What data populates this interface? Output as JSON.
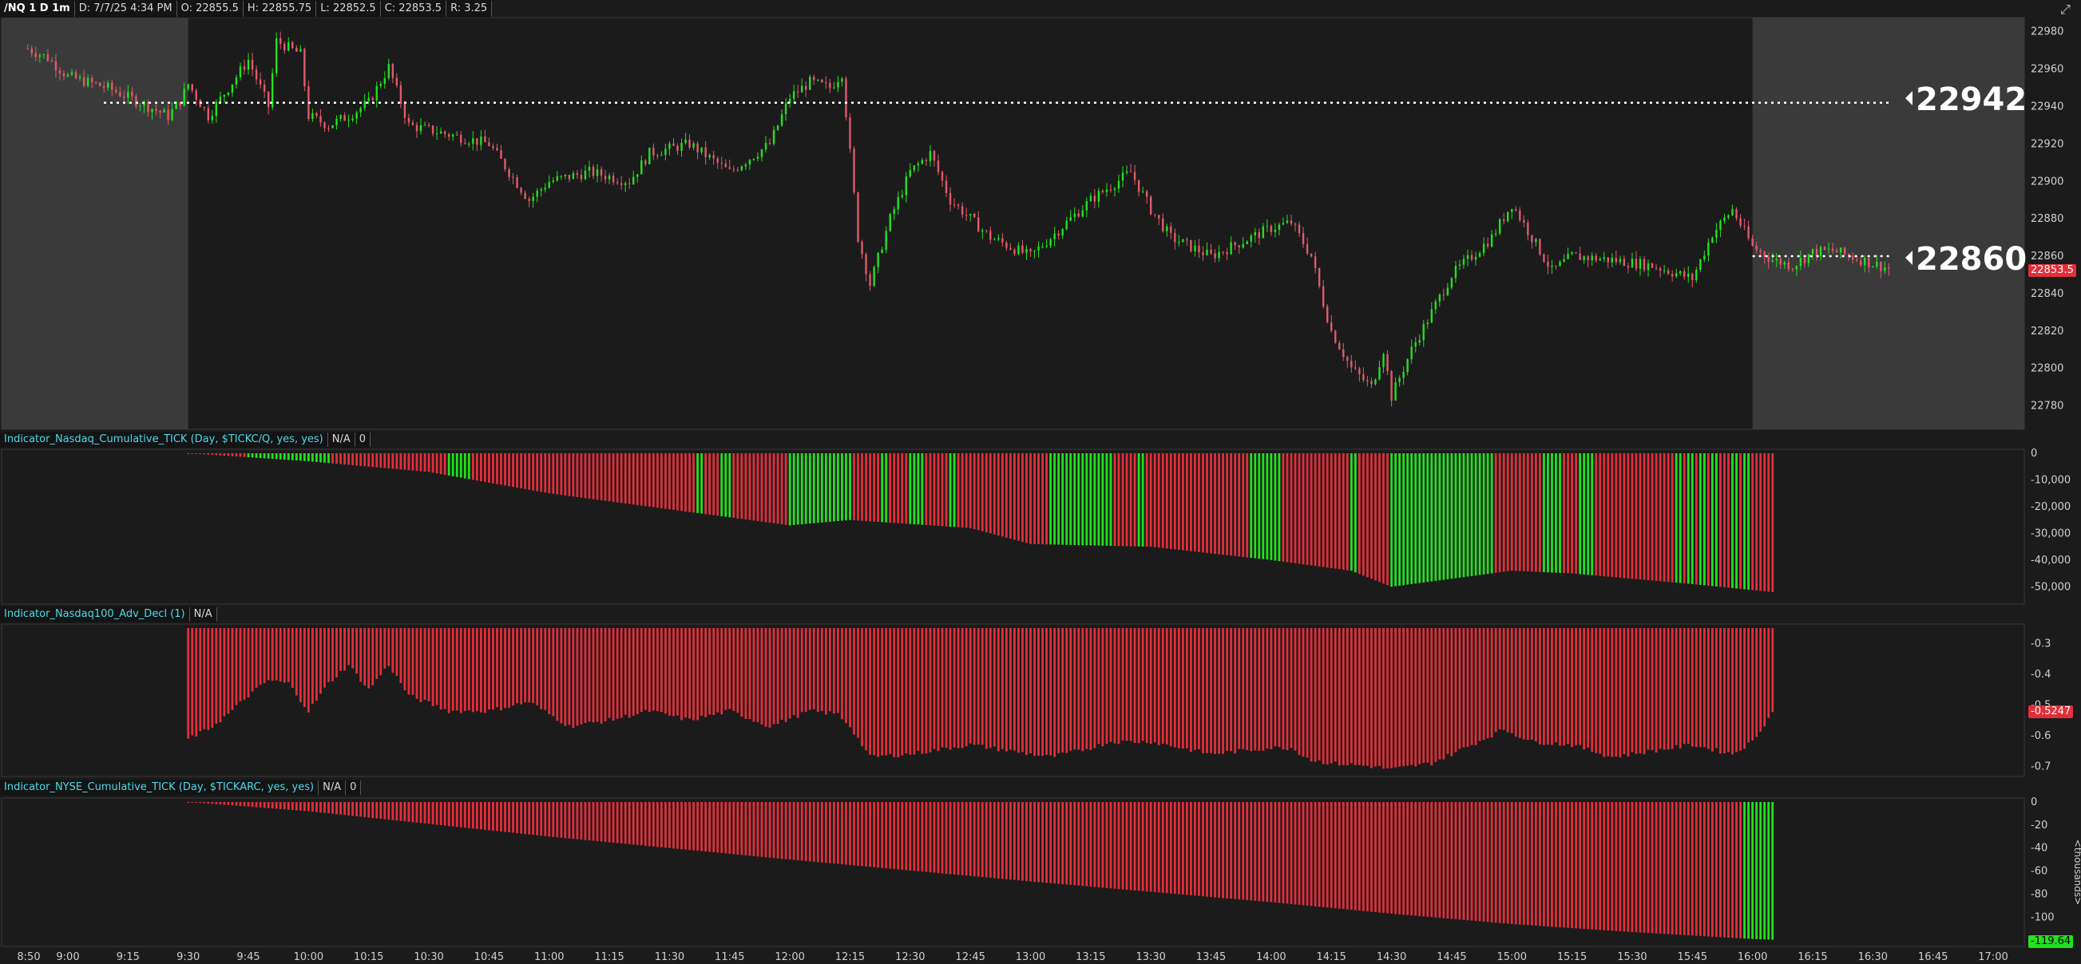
{
  "header": {
    "symbol": "/NQ 1 D 1m",
    "date": "D: 7/7/25 4:34 PM",
    "open": "O: 22855.5",
    "high": "H: 22855.75",
    "low": "L: 22852.5",
    "close": "C: 22853.5",
    "range": "R: 3.25"
  },
  "colors": {
    "up": "#22e11e",
    "down": "#e12f3a",
    "candle_down": "#e05a6a",
    "bg": "#1b1b1b",
    "session_bg": "#3a3a3a",
    "grid": "#2a2a2a",
    "axis_text": "#d0d0d0",
    "accent": "#4fd8e8"
  },
  "price_panel": {
    "y_ticks": [
      "22980",
      "22960",
      "22940",
      "22920",
      "22900",
      "22880",
      "22860",
      "22840",
      "22820",
      "22800",
      "22780"
    ],
    "ylim": [
      22770,
      22985
    ],
    "levels": [
      {
        "price": 22942,
        "label": "22942"
      },
      {
        "price": 22860,
        "label": "22860"
      }
    ],
    "last_price_tag": "22853.5"
  },
  "x_ticks": [
    "8:50",
    "9:00",
    "9:15",
    "9:30",
    "9:45",
    "10:00",
    "10:15",
    "10:30",
    "10:45",
    "11:00",
    "11:15",
    "11:30",
    "11:45",
    "12:00",
    "12:15",
    "12:30",
    "12:45",
    "13:00",
    "13:15",
    "13:30",
    "13:45",
    "14:00",
    "14:15",
    "14:30",
    "14:45",
    "15:00",
    "15:15",
    "15:30",
    "15:45",
    "16:00",
    "16:15",
    "16:30",
    "16:45",
    "17:00"
  ],
  "ind1": {
    "name": "Indicator_Nasdaq_Cumulative_TICK (Day, $TICKC/Q, yes, yes)",
    "na": "N/A",
    "val": "0",
    "ticks": [
      "0",
      "-10,000",
      "-20,000",
      "-30,000",
      "-40,000",
      "-50,000"
    ]
  },
  "ind2": {
    "name": "Indicator_Nasdaq100_Adv_Decl (1)",
    "na": "N/A",
    "ticks": [
      "-0.3",
      "-0.4",
      "-0.5",
      "-0.6",
      "-0.7"
    ],
    "tag": "-0.5247"
  },
  "ind3": {
    "name": "Indicator_NYSE_Cumulative_TICK (Day, $TICKARC, yes, yes)",
    "na": "N/A",
    "val": "0",
    "ticks": [
      "0",
      "-20",
      "-40",
      "-60",
      "-80",
      "-100"
    ],
    "tag": "-119.64",
    "unit_label": "<thousands>"
  },
  "chart_data": [
    {
      "type": "candlestick",
      "title": "/NQ 1 D 1m",
      "ylim": [
        22770,
        22985
      ],
      "anchors": [
        [
          "8:50",
          22971
        ],
        [
          "8:55",
          22966
        ],
        [
          "9:00",
          22956
        ],
        [
          "9:10",
          22950
        ],
        [
          "9:20",
          22940
        ],
        [
          "9:25",
          22935
        ],
        [
          "9:28",
          22943
        ],
        [
          "9:30",
          22952
        ],
        [
          "9:35",
          22935
        ],
        [
          "9:40",
          22950
        ],
        [
          "9:45",
          22965
        ],
        [
          "9:50",
          22940
        ],
        [
          "9:52",
          22975
        ],
        [
          "9:58",
          22968
        ],
        [
          "10:00",
          22935
        ],
        [
          "10:05",
          22930
        ],
        [
          "10:10",
          22935
        ],
        [
          "10:15",
          22942
        ],
        [
          "10:20",
          22961
        ],
        [
          "10:25",
          22930
        ],
        [
          "10:35",
          22925
        ],
        [
          "10:45",
          22920
        ],
        [
          "10:50",
          22905
        ],
        [
          "10:55",
          22890
        ],
        [
          "11:00",
          22900
        ],
        [
          "11:10",
          22905
        ],
        [
          "11:20",
          22900
        ],
        [
          "11:25",
          22915
        ],
        [
          "11:35",
          22920
        ],
        [
          "11:45",
          22905
        ],
        [
          "11:55",
          22920
        ],
        [
          "12:00",
          22945
        ],
        [
          "12:05",
          22953
        ],
        [
          "12:10",
          22950
        ],
        [
          "12:13",
          22958
        ],
        [
          "12:15",
          22915
        ],
        [
          "12:17",
          22870
        ],
        [
          "12:20",
          22845
        ],
        [
          "12:25",
          22880
        ],
        [
          "12:30",
          22905
        ],
        [
          "12:35",
          22915
        ],
        [
          "12:40",
          22890
        ],
        [
          "12:50",
          22870
        ],
        [
          "13:00",
          22860
        ],
        [
          "13:05",
          22870
        ],
        [
          "13:15",
          22890
        ],
        [
          "13:25",
          22905
        ],
        [
          "13:30",
          22885
        ],
        [
          "13:35",
          22870
        ],
        [
          "13:45",
          22860
        ],
        [
          "13:55",
          22870
        ],
        [
          "14:00",
          22875
        ],
        [
          "14:05",
          22878
        ],
        [
          "14:10",
          22860
        ],
        [
          "14:13",
          22835
        ],
        [
          "14:15",
          22820
        ],
        [
          "14:20",
          22800
        ],
        [
          "14:25",
          22790
        ],
        [
          "14:28",
          22810
        ],
        [
          "14:30",
          22785
        ],
        [
          "14:35",
          22810
        ],
        [
          "14:40",
          22830
        ],
        [
          "14:45",
          22850
        ],
        [
          "14:55",
          22870
        ],
        [
          "15:00",
          22888
        ],
        [
          "15:05",
          22870
        ],
        [
          "15:10",
          22852
        ],
        [
          "15:15",
          22860
        ],
        [
          "15:25",
          22858
        ],
        [
          "15:35",
          22855
        ],
        [
          "15:45",
          22848
        ],
        [
          "15:50",
          22872
        ],
        [
          "15:55",
          22885
        ],
        [
          "16:00",
          22865
        ],
        [
          "16:05",
          22858
        ],
        [
          "16:10",
          22855
        ],
        [
          "16:15",
          22862
        ],
        [
          "16:20",
          22863
        ],
        [
          "16:30",
          22856
        ],
        [
          "16:34",
          22853.5
        ]
      ],
      "levels": [
        22942,
        22860
      ]
    },
    {
      "type": "bar",
      "title": "Indicator_Nasdaq_Cumulative_TICK (Day, $TICKC/Q, yes, yes)",
      "ylim": [
        -55000,
        0
      ],
      "anchors": [
        [
          "9:30",
          0
        ],
        [
          "10:00",
          -3000
        ],
        [
          "10:30",
          -7000
        ],
        [
          "11:00",
          -15000
        ],
        [
          "11:30",
          -21000
        ],
        [
          "12:00",
          -27000
        ],
        [
          "12:15",
          -25000
        ],
        [
          "12:45",
          -28000
        ],
        [
          "13:00",
          -34000
        ],
        [
          "13:30",
          -35000
        ],
        [
          "14:00",
          -40000
        ],
        [
          "14:20",
          -44000
        ],
        [
          "14:30",
          -50000
        ],
        [
          "14:45",
          -47000
        ],
        [
          "15:00",
          -44000
        ],
        [
          "15:15",
          -45000
        ],
        [
          "15:45",
          -49000
        ],
        [
          "16:05",
          -52000
        ]
      ],
      "up_ranges": [
        [
          "9:45",
          "10:05"
        ],
        [
          "10:35",
          "10:40"
        ],
        [
          "11:37",
          "11:38"
        ],
        [
          "11:43",
          "11:45"
        ],
        [
          "12:00",
          "12:15"
        ],
        [
          "12:23",
          "12:24"
        ],
        [
          "12:30",
          "12:33"
        ],
        [
          "12:40",
          "12:41"
        ],
        [
          "13:05",
          "13:20"
        ],
        [
          "13:27",
          "13:28"
        ],
        [
          "13:55",
          "14:00"
        ],
        [
          "14:01",
          "14:02"
        ],
        [
          "14:20",
          "14:21"
        ],
        [
          "14:30",
          "14:55"
        ],
        [
          "15:08",
          "15:12"
        ],
        [
          "15:17",
          "15:20"
        ],
        [
          "15:41",
          "15:42"
        ],
        [
          "15:44",
          "15:45"
        ],
        [
          "15:47",
          "15:48"
        ],
        [
          "15:50",
          "15:51"
        ],
        [
          "15:55",
          "15:56"
        ],
        [
          "15:58",
          "15:59"
        ]
      ]
    },
    {
      "type": "bar",
      "title": "Indicator_Nasdaq100_Adv_Decl (1)",
      "ylim": [
        -0.72,
        -0.25
      ],
      "anchors": [
        [
          "9:30",
          -0.61
        ],
        [
          "9:35",
          -0.58
        ],
        [
          "9:40",
          -0.53
        ],
        [
          "9:45",
          -0.47
        ],
        [
          "9:50",
          -0.42
        ],
        [
          "9:55",
          -0.43
        ],
        [
          "10:00",
          -0.52
        ],
        [
          "10:05",
          -0.43
        ],
        [
          "10:10",
          -0.37
        ],
        [
          "10:15",
          -0.45
        ],
        [
          "10:20",
          -0.37
        ],
        [
          "10:25",
          -0.47
        ],
        [
          "10:35",
          -0.52
        ],
        [
          "10:45",
          -0.52
        ],
        [
          "10:55",
          -0.49
        ],
        [
          "11:05",
          -0.57
        ],
        [
          "11:15",
          -0.55
        ],
        [
          "11:25",
          -0.52
        ],
        [
          "11:35",
          -0.55
        ],
        [
          "11:45",
          -0.52
        ],
        [
          "11:55",
          -0.57
        ],
        [
          "12:05",
          -0.52
        ],
        [
          "12:12",
          -0.53
        ],
        [
          "12:15",
          -0.57
        ],
        [
          "12:20",
          -0.67
        ],
        [
          "12:30",
          -0.66
        ],
        [
          "12:45",
          -0.63
        ],
        [
          "12:55",
          -0.65
        ],
        [
          "13:05",
          -0.67
        ],
        [
          "13:15",
          -0.64
        ],
        [
          "13:20",
          -0.62
        ],
        [
          "13:30",
          -0.62
        ],
        [
          "13:45",
          -0.66
        ],
        [
          "14:00",
          -0.64
        ],
        [
          "14:05",
          -0.64
        ],
        [
          "14:10",
          -0.68
        ],
        [
          "14:15",
          -0.69
        ],
        [
          "14:25",
          -0.7
        ],
        [
          "14:30",
          -0.71
        ],
        [
          "14:40",
          -0.69
        ],
        [
          "14:50",
          -0.63
        ],
        [
          "14:58",
          -0.58
        ],
        [
          "15:05",
          -0.62
        ],
        [
          "15:15",
          -0.63
        ],
        [
          "15:25",
          -0.67
        ],
        [
          "15:35",
          -0.65
        ],
        [
          "15:45",
          -0.63
        ],
        [
          "15:55",
          -0.66
        ],
        [
          "16:00",
          -0.62
        ],
        [
          "16:05",
          -0.5247
        ]
      ]
    },
    {
      "type": "bar",
      "title": "Indicator_NYSE_Cumulative_TICK (Day, $TICKARC, yes, yes)",
      "ylim": [
        -122000,
        0
      ],
      "anchors": [
        [
          "9:30",
          0
        ],
        [
          "10:00",
          -8000
        ],
        [
          "11:00",
          -30000
        ],
        [
          "12:00",
          -50000
        ],
        [
          "13:00",
          -69000
        ],
        [
          "14:00",
          -87000
        ],
        [
          "14:30",
          -97000
        ],
        [
          "15:00",
          -106000
        ],
        [
          "15:30",
          -113000
        ],
        [
          "16:00",
          -119000
        ],
        [
          "16:05",
          -119640
        ]
      ],
      "up_ranges": [
        [
          "15:58",
          "16:05"
        ]
      ]
    }
  ]
}
